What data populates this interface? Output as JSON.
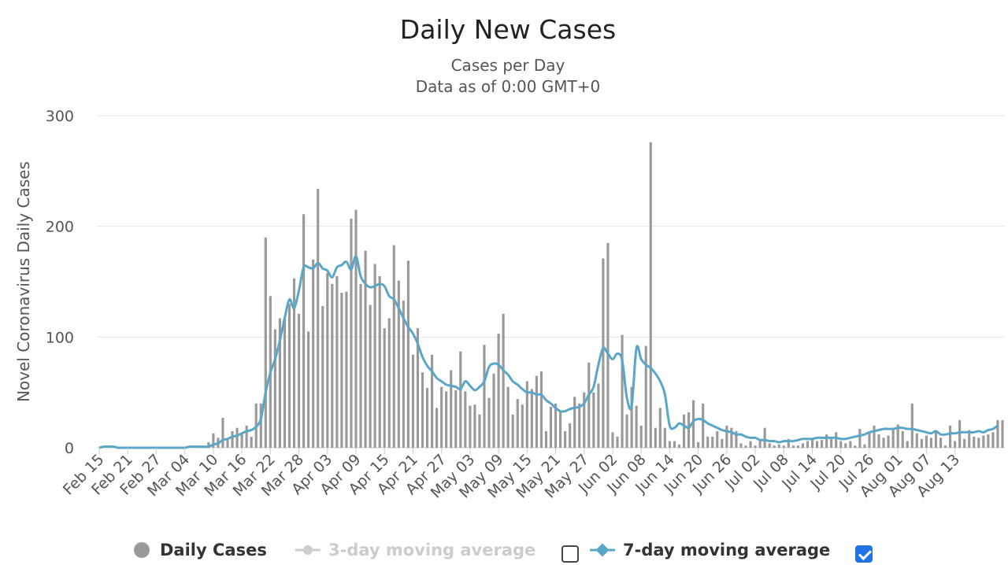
{
  "chart_data": {
    "type": "bar",
    "title": "Daily New Cases",
    "subtitle_lines": [
      "Cases per Day",
      "Data as of 0:00 GMT+0"
    ],
    "ylabel": "Novel Coronavirus Daily Cases",
    "ylim": [
      0,
      300
    ],
    "yticks": [
      0,
      100,
      200,
      300
    ],
    "grid": true,
    "legend_placement": "bottom",
    "start_date": "2020-02-15",
    "xtick_labels": [
      "Feb 15",
      "Feb 21",
      "Feb 27",
      "Mar 04",
      "Mar 10",
      "Mar 16",
      "Mar 22",
      "Mar 28",
      "Apr 03",
      "Apr 09",
      "Apr 15",
      "Apr 21",
      "Apr 27",
      "May 03",
      "May 09",
      "May 15",
      "May 21",
      "May 27",
      "Jun 02",
      "Jun 08",
      "Jun 14",
      "Jun 20",
      "Jun 26",
      "Jul 02",
      "Jul 08",
      "Jul 14",
      "Jul 20",
      "Jul 26",
      "Aug 01",
      "Aug 07",
      "Aug 13"
    ],
    "series": [
      {
        "name": "Daily Cases",
        "type": "bar",
        "color": "#999999",
        "values": [
          0,
          0,
          0,
          0,
          0,
          0,
          0,
          0,
          0,
          0,
          0,
          0,
          0,
          0,
          0,
          0,
          0,
          0,
          1,
          1,
          2,
          2,
          1,
          5,
          13,
          9,
          27,
          7,
          15,
          18,
          13,
          20,
          10,
          40,
          40,
          190,
          137,
          107,
          117,
          117,
          130,
          153,
          121,
          211,
          105,
          170,
          234,
          128,
          158,
          148,
          155,
          140,
          141,
          207,
          215,
          148,
          178,
          129,
          166,
          155,
          108,
          117,
          183,
          151,
          133,
          169,
          84,
          108,
          68,
          54,
          84,
          36,
          55,
          51,
          70,
          52,
          87,
          51,
          38,
          39,
          30,
          93,
          45,
          67,
          103,
          121,
          55,
          30,
          44,
          39,
          60,
          53,
          65,
          69,
          15,
          37,
          40,
          33,
          15,
          22,
          46,
          40,
          50,
          77,
          50,
          58,
          171,
          185,
          14,
          10,
          102,
          30,
          55,
          38,
          20,
          92,
          276,
          18,
          36,
          18,
          6,
          6,
          3,
          30,
          32,
          43,
          5,
          40,
          10,
          10,
          15,
          8,
          20,
          18,
          15,
          4,
          2,
          6,
          2,
          6,
          18,
          4,
          2,
          3,
          2,
          8,
          2,
          2,
          4,
          6,
          8,
          6,
          7,
          12,
          8,
          14,
          6,
          4,
          6,
          2,
          17,
          3,
          14,
          20,
          12,
          9,
          11,
          18,
          21,
          15,
          6,
          40,
          13,
          8,
          11,
          9,
          15,
          9,
          2,
          20,
          6,
          25,
          8,
          16,
          10,
          9,
          11,
          12,
          14,
          25,
          25
        ],
        "color_hex": "#999999"
      },
      {
        "name": "3-day moving average",
        "type": "line",
        "visible": false,
        "checked": false
      },
      {
        "name": "7-day moving average",
        "type": "line",
        "visible": true,
        "checked": true,
        "color": "#5aa6c8",
        "values": [
          0,
          1,
          1,
          1,
          0,
          0,
          0,
          0,
          0,
          0,
          0,
          0,
          0,
          0,
          0,
          0,
          0,
          0,
          0,
          1,
          1,
          1,
          1,
          1,
          3,
          4,
          7,
          8,
          10,
          11,
          13,
          15,
          16,
          19,
          26,
          50,
          68,
          80,
          97,
          117,
          134,
          126,
          142,
          163,
          163,
          162,
          167,
          162,
          160,
          154,
          163,
          165,
          168,
          161,
          173,
          155,
          148,
          145,
          146,
          148,
          146,
          137,
          134,
          126,
          117,
          109,
          103,
          94,
          82,
          74,
          69,
          63,
          60,
          57,
          56,
          55,
          53,
          60,
          56,
          52,
          55,
          60,
          73,
          76,
          75,
          70,
          66,
          60,
          57,
          53,
          50,
          50,
          48,
          48,
          43,
          40,
          36,
          33,
          33,
          35,
          36,
          37,
          40,
          48,
          55,
          75,
          90,
          85,
          80,
          85,
          79,
          45,
          38,
          90,
          80,
          75,
          72,
          67,
          60,
          48,
          20,
          18,
          22,
          20,
          18,
          24,
          26,
          25,
          22,
          20,
          18,
          16,
          15,
          14,
          12,
          12,
          10,
          9,
          9,
          7,
          7,
          6,
          6,
          5,
          6,
          6,
          6,
          7,
          8,
          8,
          8,
          9,
          9,
          9,
          9,
          9,
          8,
          8,
          9,
          10,
          11,
          12,
          14,
          15,
          16,
          17,
          17,
          17,
          18,
          18,
          17,
          17,
          16,
          15,
          14,
          13,
          15,
          12,
          12,
          13,
          13,
          14,
          14,
          14,
          14,
          15,
          14,
          16,
          17,
          20
        ]
      }
    ]
  },
  "legend": {
    "daily_cases": "Daily Cases",
    "ma3": "3-day moving average",
    "ma7": "7-day moving average"
  },
  "colors": {
    "bars": "#999999",
    "ma7_line": "#5aa6c8",
    "grid": "#e6e6e6",
    "checkbox_checked": "#1f73e6"
  }
}
